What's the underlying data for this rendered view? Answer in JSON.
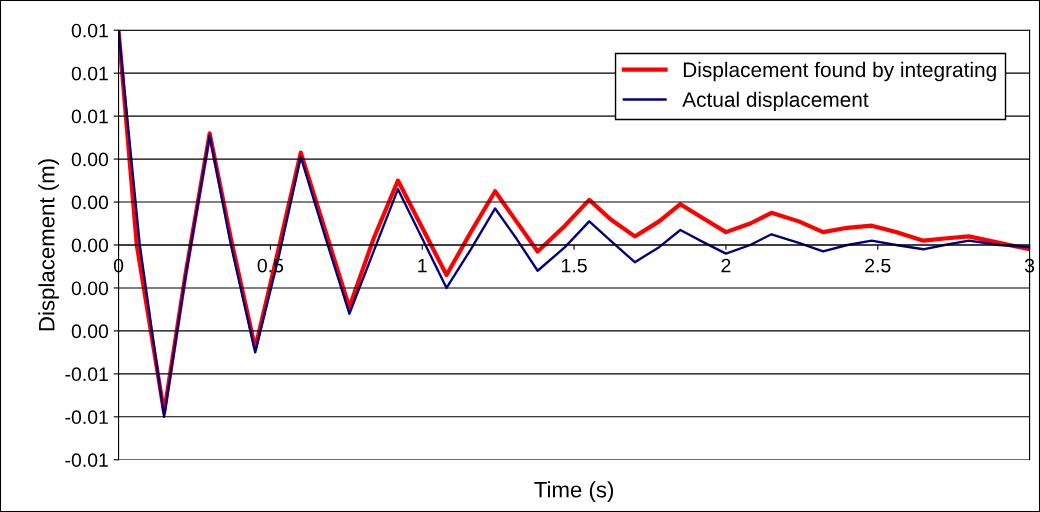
{
  "chart_data": {
    "type": "line",
    "xlabel": "Time (s)",
    "ylabel": "Displacement (m)",
    "xlim": [
      0,
      3
    ],
    "xticks": [
      0,
      0.5,
      1,
      1.5,
      2,
      2.5,
      3
    ],
    "ylim": [
      -0.01,
      0.01
    ],
    "yticks": [
      {
        "value": -0.01,
        "label": "-0.01"
      },
      {
        "value": -0.008,
        "label": "-0.01"
      },
      {
        "value": -0.006,
        "label": "-0.01"
      },
      {
        "value": -0.004,
        "label": "0.00"
      },
      {
        "value": -0.002,
        "label": "0.00"
      },
      {
        "value": 0,
        "label": "0.00"
      },
      {
        "value": 0.002,
        "label": "0.00"
      },
      {
        "value": 0.004,
        "label": "0.00"
      },
      {
        "value": 0.006,
        "label": "0.01"
      },
      {
        "value": 0.008,
        "label": "0.01"
      },
      {
        "value": 0.01,
        "label": "0.01"
      }
    ],
    "grid": "y",
    "legend": "top right",
    "marker": "none",
    "line_style": "solid",
    "series": [
      {
        "name": "Displacement found by integrating",
        "color": "#ff0000",
        "x": [
          0,
          0.06,
          0.15,
          0.22,
          0.3,
          0.37,
          0.45,
          0.53,
          0.6,
          0.68,
          0.76,
          0.84,
          0.92,
          1.0,
          1.08,
          1.16,
          1.24,
          1.31,
          1.38,
          1.47,
          1.55,
          1.62,
          1.7,
          1.78,
          1.85,
          1.93,
          2.0,
          2.08,
          2.15,
          2.24,
          2.32,
          2.4,
          2.48,
          2.56,
          2.65,
          2.72,
          2.8,
          2.9,
          3.0
        ],
        "values": [
          0.01,
          0,
          -0.0078,
          -0.0014,
          0.0052,
          0.0003,
          -0.0048,
          0,
          0.0043,
          0.0007,
          -0.0029,
          0.0003,
          0.003,
          0.0008,
          -0.0014,
          0.0006,
          0.0025,
          0.0011,
          -0.0003,
          0.0009,
          0.0021,
          0.0012,
          0.0004,
          0.0011,
          0.0019,
          0.0012,
          0.0006,
          0.001,
          0.0015,
          0.0011,
          0.0006,
          0.0008,
          0.0009,
          0.0006,
          0.0002,
          0.0003,
          0.0004,
          0.0001,
          -0.0002
        ]
      },
      {
        "name": "Actual displacement",
        "color": "#000080",
        "x": [
          0,
          0.07,
          0.15,
          0.22,
          0.3,
          0.37,
          0.45,
          0.53,
          0.6,
          0.68,
          0.76,
          0.84,
          0.92,
          1.0,
          1.08,
          1.16,
          1.24,
          1.31,
          1.38,
          1.47,
          1.55,
          1.62,
          1.7,
          1.78,
          1.85,
          1.93,
          2.0,
          2.08,
          2.15,
          2.24,
          2.32,
          2.4,
          2.48,
          2.56,
          2.65,
          2.72,
          2.8,
          2.9,
          3.0
        ],
        "values": [
          0.01,
          0,
          -0.008,
          -0.0015,
          0.0051,
          0,
          -0.005,
          -0.0004,
          0.0041,
          0.0004,
          -0.0032,
          -0.0003,
          0.0026,
          0.0003,
          -0.002,
          -0.0002,
          0.0017,
          0.0003,
          -0.0012,
          -0.0001,
          0.0011,
          0.0002,
          -0.0008,
          -0.0001,
          0.0007,
          0.0001,
          -0.0004,
          0,
          0.0005,
          0.0001,
          -0.0003,
          0,
          0.0002,
          0,
          -0.0002,
          0,
          0.0002,
          0,
          -0.0001
        ]
      }
    ]
  }
}
